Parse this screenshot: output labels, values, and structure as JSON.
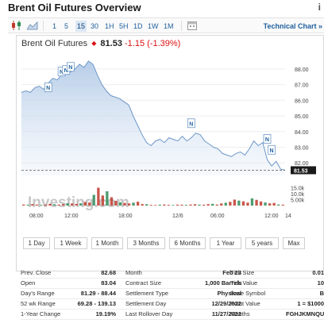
{
  "page": {
    "title": "Brent Oil Futures Overview",
    "info_icon": "i"
  },
  "toolbar": {
    "icons": [
      "candlestick-icon",
      "area-chart-icon",
      "calendar-icon"
    ],
    "timeframes": [
      "1",
      "5",
      "15",
      "30",
      "1H",
      "5H",
      "1D",
      "1W",
      "1M"
    ],
    "active_timeframe": "15",
    "technical_chart_label": "Technical Chart »"
  },
  "chart_header": {
    "name": "Brent Oil Futures",
    "price": "81.53",
    "change": "-1.15 (-1.39%)",
    "change_color": "#d11111"
  },
  "chart_data": {
    "type": "area",
    "time_ticks": [
      "08:00",
      "12:00",
      "18:00",
      "12/6",
      "06:00",
      "12:00",
      "14"
    ],
    "price_ticks": [
      "88.00",
      "87.00",
      "86.00",
      "85.00",
      "84.00",
      "83.00",
      "82.00"
    ],
    "price_ylim": [
      81.2,
      88.6
    ],
    "last_value": 81.53,
    "last_value_label": "81.53",
    "prices": [
      86.5,
      86.6,
      86.5,
      86.8,
      86.9,
      86.7,
      87.1,
      87.4,
      87.3,
      87.6,
      87.9,
      87.8,
      88.0,
      88.3,
      88.1,
      88.5,
      88.3,
      87.6,
      87.0,
      86.6,
      86.3,
      86.2,
      86.1,
      85.9,
      85.7,
      85.0,
      84.4,
      83.8,
      83.3,
      83.1,
      83.4,
      83.5,
      83.3,
      83.6,
      83.5,
      83.4,
      83.7,
      83.4,
      83.6,
      83.9,
      83.8,
      83.4,
      83.2,
      83.0,
      82.9,
      82.6,
      82.5,
      82.4,
      82.6,
      82.7,
      82.5,
      82.9,
      83.4,
      83.1,
      83.3,
      82.2,
      81.8,
      82.1,
      81.6,
      81.53
    ],
    "volume_ticks": [
      "15.0k",
      "10.0k",
      "5.00k"
    ],
    "volume_ylim": [
      0,
      16000
    ],
    "volumes": [
      900,
      700,
      1200,
      800,
      600,
      900,
      1500,
      1100,
      800,
      1300,
      2000,
      1700,
      1400,
      1900,
      3000,
      2600,
      9000,
      15000,
      8500,
      12000,
      7000,
      4000,
      2800,
      2200,
      1800,
      2500,
      3200,
      1300,
      1100,
      600,
      500,
      700,
      900,
      600,
      500,
      800,
      700,
      600,
      900,
      1100,
      800,
      700,
      1200,
      1500,
      900,
      1800,
      2400,
      3100,
      5000,
      4200,
      3600,
      2500,
      6000,
      4800,
      3500,
      2600,
      1900,
      2200,
      900,
      700
    ],
    "news_markers": [
      {
        "label": "N",
        "price": 86.3,
        "at": 6
      },
      {
        "label": "N",
        "price": 87.3,
        "at": 9
      },
      {
        "label": "N",
        "price": 87.4,
        "at": 10
      },
      {
        "label": "N",
        "price": 87.6,
        "at": 11
      },
      {
        "label": "N",
        "price": 84.0,
        "at": 38
      },
      {
        "label": "N",
        "price": 83.0,
        "at": 55
      },
      {
        "label": "N",
        "price": 82.3,
        "at": 56
      }
    ],
    "watermark": "Investing.com"
  },
  "range_buttons": [
    "1 Day",
    "1 Week",
    "1 Month",
    "3 Months",
    "6 Months",
    "1 Year",
    "5 years",
    "Max"
  ],
  "stats": [
    [
      {
        "label": "Prev. Close",
        "value": "82.68"
      },
      {
        "label": "Month",
        "value": "Feb 23"
      },
      {
        "label": "Tick Size",
        "value": "0.01"
      }
    ],
    [
      {
        "label": "Open",
        "value": "83.04"
      },
      {
        "label": "Contract Size",
        "value": "1,000 Barrels"
      },
      {
        "label": "Tick Value",
        "value": "10"
      }
    ],
    [
      {
        "label": "Day's Range",
        "value": "81.29 - 88.44"
      },
      {
        "label": "Settlement Type",
        "value": "Physical"
      },
      {
        "label": "Base Symbol",
        "value": "B"
      }
    ],
    [
      {
        "label": "52 wk Range",
        "value": "69.28 - 139.13"
      },
      {
        "label": "Settlement Day",
        "value": "12/29/2022"
      },
      {
        "label": "Point Value",
        "value": "1 = $1000"
      }
    ],
    [
      {
        "label": "1-Year Change",
        "value": "19.19%"
      },
      {
        "label": "Last Rollover Day",
        "value": "11/27/2022"
      },
      {
        "label": "Months",
        "value": "FGHJKMNQUVXZ"
      }
    ]
  ]
}
